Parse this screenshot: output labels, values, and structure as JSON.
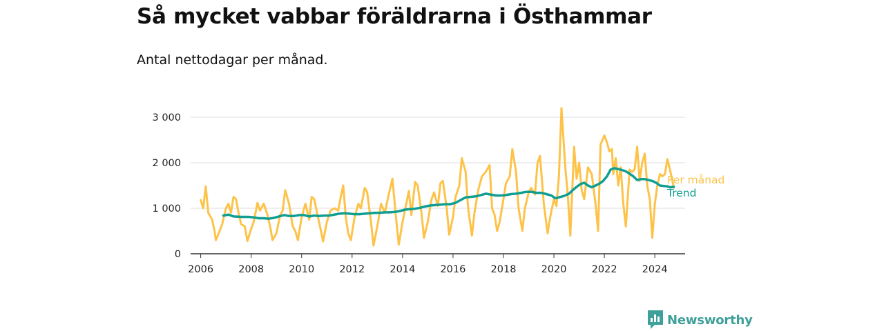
{
  "title": "Så mycket vabbar föräldrarna i Östhammar",
  "subtitle": "Antal nettodagar per månad.",
  "brand": {
    "name": "Newsworthy",
    "icon": "newsworthy-logo-icon"
  },
  "colors": {
    "monthly": "#fdc349",
    "trend": "#109e91",
    "grid": "#dddddd",
    "axis": "#333333",
    "brand": "#3fa09a"
  },
  "chart_data": {
    "type": "line",
    "title": "Så mycket vabbar föräldrarna i Östhammar",
    "subtitle": "Antal nettodagar per månad.",
    "xlabel": "",
    "ylabel": "",
    "xlim": [
      2005.6,
      2025.2
    ],
    "ylim": [
      0,
      3000
    ],
    "grid": true,
    "legend": "direct-labels-right",
    "x_ticks": [
      2006,
      2008,
      2010,
      2012,
      2014,
      2016,
      2018,
      2020,
      2022,
      2024
    ],
    "x_tick_labels": [
      "2006",
      "2008",
      "2010",
      "2012",
      "2014",
      "2016",
      "2018",
      "2020",
      "2022",
      "2024"
    ],
    "y_ticks": [
      0,
      1000,
      2000,
      3000
    ],
    "y_tick_labels": [
      "0",
      "1 000",
      "2 000",
      "3 000"
    ],
    "series": [
      {
        "name": "Per månad",
        "points": [
          [
            2006.0,
            1180
          ],
          [
            2006.1,
            1000
          ],
          [
            2006.2,
            1480
          ],
          [
            2006.3,
            900
          ],
          [
            2006.45,
            750
          ],
          [
            2006.55,
            500
          ],
          [
            2006.6,
            300
          ],
          [
            2006.75,
            500
          ],
          [
            2006.85,
            650
          ],
          [
            2007.0,
            1000
          ],
          [
            2007.1,
            1100
          ],
          [
            2007.2,
            900
          ],
          [
            2007.3,
            1250
          ],
          [
            2007.4,
            1200
          ],
          [
            2007.5,
            900
          ],
          [
            2007.6,
            650
          ],
          [
            2007.75,
            600
          ],
          [
            2007.85,
            280
          ],
          [
            2008.0,
            550
          ],
          [
            2008.1,
            700
          ],
          [
            2008.25,
            1120
          ],
          [
            2008.35,
            950
          ],
          [
            2008.5,
            1100
          ],
          [
            2008.65,
            850
          ],
          [
            2008.75,
            600
          ],
          [
            2008.85,
            300
          ],
          [
            2009.0,
            450
          ],
          [
            2009.15,
            850
          ],
          [
            2009.25,
            950
          ],
          [
            2009.35,
            1400
          ],
          [
            2009.5,
            1100
          ],
          [
            2009.65,
            600
          ],
          [
            2009.75,
            500
          ],
          [
            2009.85,
            300
          ],
          [
            2010.0,
            800
          ],
          [
            2010.15,
            1100
          ],
          [
            2010.3,
            750
          ],
          [
            2010.4,
            1250
          ],
          [
            2010.5,
            1200
          ],
          [
            2010.65,
            800
          ],
          [
            2010.75,
            550
          ],
          [
            2010.85,
            270
          ],
          [
            2011.0,
            700
          ],
          [
            2011.15,
            950
          ],
          [
            2011.3,
            1000
          ],
          [
            2011.45,
            950
          ],
          [
            2011.55,
            1250
          ],
          [
            2011.65,
            1500
          ],
          [
            2011.75,
            800
          ],
          [
            2011.85,
            450
          ],
          [
            2011.95,
            300
          ],
          [
            2012.1,
            800
          ],
          [
            2012.25,
            1100
          ],
          [
            2012.35,
            1000
          ],
          [
            2012.5,
            1450
          ],
          [
            2012.6,
            1350
          ],
          [
            2012.75,
            700
          ],
          [
            2012.85,
            180
          ],
          [
            2013.0,
            600
          ],
          [
            2013.15,
            1100
          ],
          [
            2013.3,
            900
          ],
          [
            2013.45,
            1300
          ],
          [
            2013.6,
            1650
          ],
          [
            2013.75,
            750
          ],
          [
            2013.85,
            200
          ],
          [
            2014.0,
            700
          ],
          [
            2014.15,
            1100
          ],
          [
            2014.25,
            1380
          ],
          [
            2014.35,
            850
          ],
          [
            2014.5,
            1580
          ],
          [
            2014.6,
            1500
          ],
          [
            2014.75,
            900
          ],
          [
            2014.85,
            350
          ],
          [
            2015.0,
            700
          ],
          [
            2015.15,
            1200
          ],
          [
            2015.25,
            1350
          ],
          [
            2015.4,
            1050
          ],
          [
            2015.5,
            1550
          ],
          [
            2015.6,
            1600
          ],
          [
            2015.75,
            1000
          ],
          [
            2015.85,
            420
          ],
          [
            2016.0,
            800
          ],
          [
            2016.1,
            1250
          ],
          [
            2016.25,
            1500
          ],
          [
            2016.35,
            2100
          ],
          [
            2016.5,
            1800
          ],
          [
            2016.6,
            1000
          ],
          [
            2016.75,
            400
          ],
          [
            2016.85,
            900
          ],
          [
            2017.0,
            1400
          ],
          [
            2017.15,
            1700
          ],
          [
            2017.3,
            1800
          ],
          [
            2017.45,
            1950
          ],
          [
            2017.55,
            1000
          ],
          [
            2017.65,
            850
          ],
          [
            2017.75,
            500
          ],
          [
            2017.85,
            700
          ],
          [
            2018.0,
            1200
          ],
          [
            2018.1,
            1550
          ],
          [
            2018.25,
            1700
          ],
          [
            2018.35,
            2300
          ],
          [
            2018.5,
            1800
          ],
          [
            2018.6,
            1000
          ],
          [
            2018.75,
            500
          ],
          [
            2018.85,
            1000
          ],
          [
            2019.0,
            1350
          ],
          [
            2019.1,
            1450
          ],
          [
            2019.25,
            1300
          ],
          [
            2019.35,
            2000
          ],
          [
            2019.45,
            2150
          ],
          [
            2019.6,
            1100
          ],
          [
            2019.75,
            450
          ],
          [
            2019.85,
            800
          ],
          [
            2020.0,
            1200
          ],
          [
            2020.1,
            1050
          ],
          [
            2020.2,
            1700
          ],
          [
            2020.3,
            3200
          ],
          [
            2020.45,
            1900
          ],
          [
            2020.55,
            1300
          ],
          [
            2020.65,
            400
          ],
          [
            2020.8,
            2350
          ],
          [
            2020.9,
            1650
          ],
          [
            2021.0,
            2000
          ],
          [
            2021.1,
            1400
          ],
          [
            2021.2,
            1200
          ],
          [
            2021.35,
            1900
          ],
          [
            2021.5,
            1750
          ],
          [
            2021.65,
            1100
          ],
          [
            2021.75,
            500
          ],
          [
            2021.85,
            2400
          ],
          [
            2022.0,
            2600
          ],
          [
            2022.1,
            2450
          ],
          [
            2022.2,
            2250
          ],
          [
            2022.3,
            2300
          ],
          [
            2022.35,
            1750
          ],
          [
            2022.45,
            2100
          ],
          [
            2022.55,
            1500
          ],
          [
            2022.65,
            1900
          ],
          [
            2022.75,
            1100
          ],
          [
            2022.85,
            600
          ],
          [
            2023.0,
            1850
          ],
          [
            2023.1,
            1800
          ],
          [
            2023.2,
            1850
          ],
          [
            2023.3,
            2350
          ],
          [
            2023.4,
            1600
          ],
          [
            2023.5,
            2000
          ],
          [
            2023.6,
            2200
          ],
          [
            2023.7,
            1500
          ],
          [
            2023.8,
            1200
          ],
          [
            2023.9,
            350
          ],
          [
            2024.0,
            1100
          ],
          [
            2024.1,
            1500
          ],
          [
            2024.2,
            1750
          ],
          [
            2024.3,
            1700
          ],
          [
            2024.4,
            1750
          ],
          [
            2024.5,
            2080
          ],
          [
            2024.6,
            1850
          ],
          [
            2024.7,
            1600
          ],
          [
            2024.75,
            1450
          ]
        ]
      },
      {
        "name": "Trend",
        "points": [
          [
            2006.9,
            840
          ],
          [
            2007.1,
            860
          ],
          [
            2007.3,
            820
          ],
          [
            2007.6,
            810
          ],
          [
            2007.9,
            810
          ],
          [
            2008.1,
            800
          ],
          [
            2008.3,
            780
          ],
          [
            2008.5,
            780
          ],
          [
            2008.7,
            770
          ],
          [
            2008.9,
            790
          ],
          [
            2009.1,
            820
          ],
          [
            2009.3,
            850
          ],
          [
            2009.5,
            830
          ],
          [
            2009.7,
            830
          ],
          [
            2009.9,
            850
          ],
          [
            2010.1,
            850
          ],
          [
            2010.3,
            820
          ],
          [
            2010.5,
            840
          ],
          [
            2010.7,
            830
          ],
          [
            2010.9,
            840
          ],
          [
            2011.1,
            840
          ],
          [
            2011.3,
            860
          ],
          [
            2011.5,
            880
          ],
          [
            2011.7,
            890
          ],
          [
            2011.9,
            880
          ],
          [
            2012.1,
            870
          ],
          [
            2012.3,
            870
          ],
          [
            2012.5,
            880
          ],
          [
            2012.7,
            890
          ],
          [
            2012.9,
            900
          ],
          [
            2013.1,
            900
          ],
          [
            2013.3,
            910
          ],
          [
            2013.5,
            910
          ],
          [
            2013.7,
            920
          ],
          [
            2013.9,
            940
          ],
          [
            2014.1,
            970
          ],
          [
            2014.3,
            980
          ],
          [
            2014.5,
            990
          ],
          [
            2014.7,
            1010
          ],
          [
            2014.9,
            1040
          ],
          [
            2015.1,
            1060
          ],
          [
            2015.3,
            1070
          ],
          [
            2015.5,
            1080
          ],
          [
            2015.7,
            1090
          ],
          [
            2015.9,
            1090
          ],
          [
            2016.1,
            1120
          ],
          [
            2016.3,
            1180
          ],
          [
            2016.5,
            1240
          ],
          [
            2016.7,
            1250
          ],
          [
            2016.9,
            1260
          ],
          [
            2017.1,
            1290
          ],
          [
            2017.3,
            1320
          ],
          [
            2017.5,
            1300
          ],
          [
            2017.7,
            1280
          ],
          [
            2017.9,
            1280
          ],
          [
            2018.1,
            1290
          ],
          [
            2018.3,
            1310
          ],
          [
            2018.5,
            1320
          ],
          [
            2018.7,
            1340
          ],
          [
            2018.9,
            1360
          ],
          [
            2019.1,
            1360
          ],
          [
            2019.3,
            1340
          ],
          [
            2019.5,
            1340
          ],
          [
            2019.7,
            1310
          ],
          [
            2019.9,
            1280
          ],
          [
            2020.05,
            1220
          ],
          [
            2020.2,
            1240
          ],
          [
            2020.4,
            1270
          ],
          [
            2020.6,
            1320
          ],
          [
            2020.75,
            1400
          ],
          [
            2020.9,
            1470
          ],
          [
            2021.05,
            1530
          ],
          [
            2021.2,
            1560
          ],
          [
            2021.35,
            1500
          ],
          [
            2021.5,
            1460
          ],
          [
            2021.65,
            1500
          ],
          [
            2021.8,
            1540
          ],
          [
            2021.95,
            1600
          ],
          [
            2022.1,
            1700
          ],
          [
            2022.25,
            1850
          ],
          [
            2022.4,
            1880
          ],
          [
            2022.55,
            1860
          ],
          [
            2022.7,
            1840
          ],
          [
            2022.85,
            1810
          ],
          [
            2023.0,
            1760
          ],
          [
            2023.15,
            1700
          ],
          [
            2023.3,
            1620
          ],
          [
            2023.45,
            1640
          ],
          [
            2023.6,
            1640
          ],
          [
            2023.75,
            1620
          ],
          [
            2023.9,
            1600
          ],
          [
            2024.05,
            1560
          ],
          [
            2024.2,
            1500
          ],
          [
            2024.35,
            1490
          ],
          [
            2024.5,
            1480
          ],
          [
            2024.6,
            1460
          ],
          [
            2024.75,
            1470
          ]
        ]
      }
    ]
  }
}
